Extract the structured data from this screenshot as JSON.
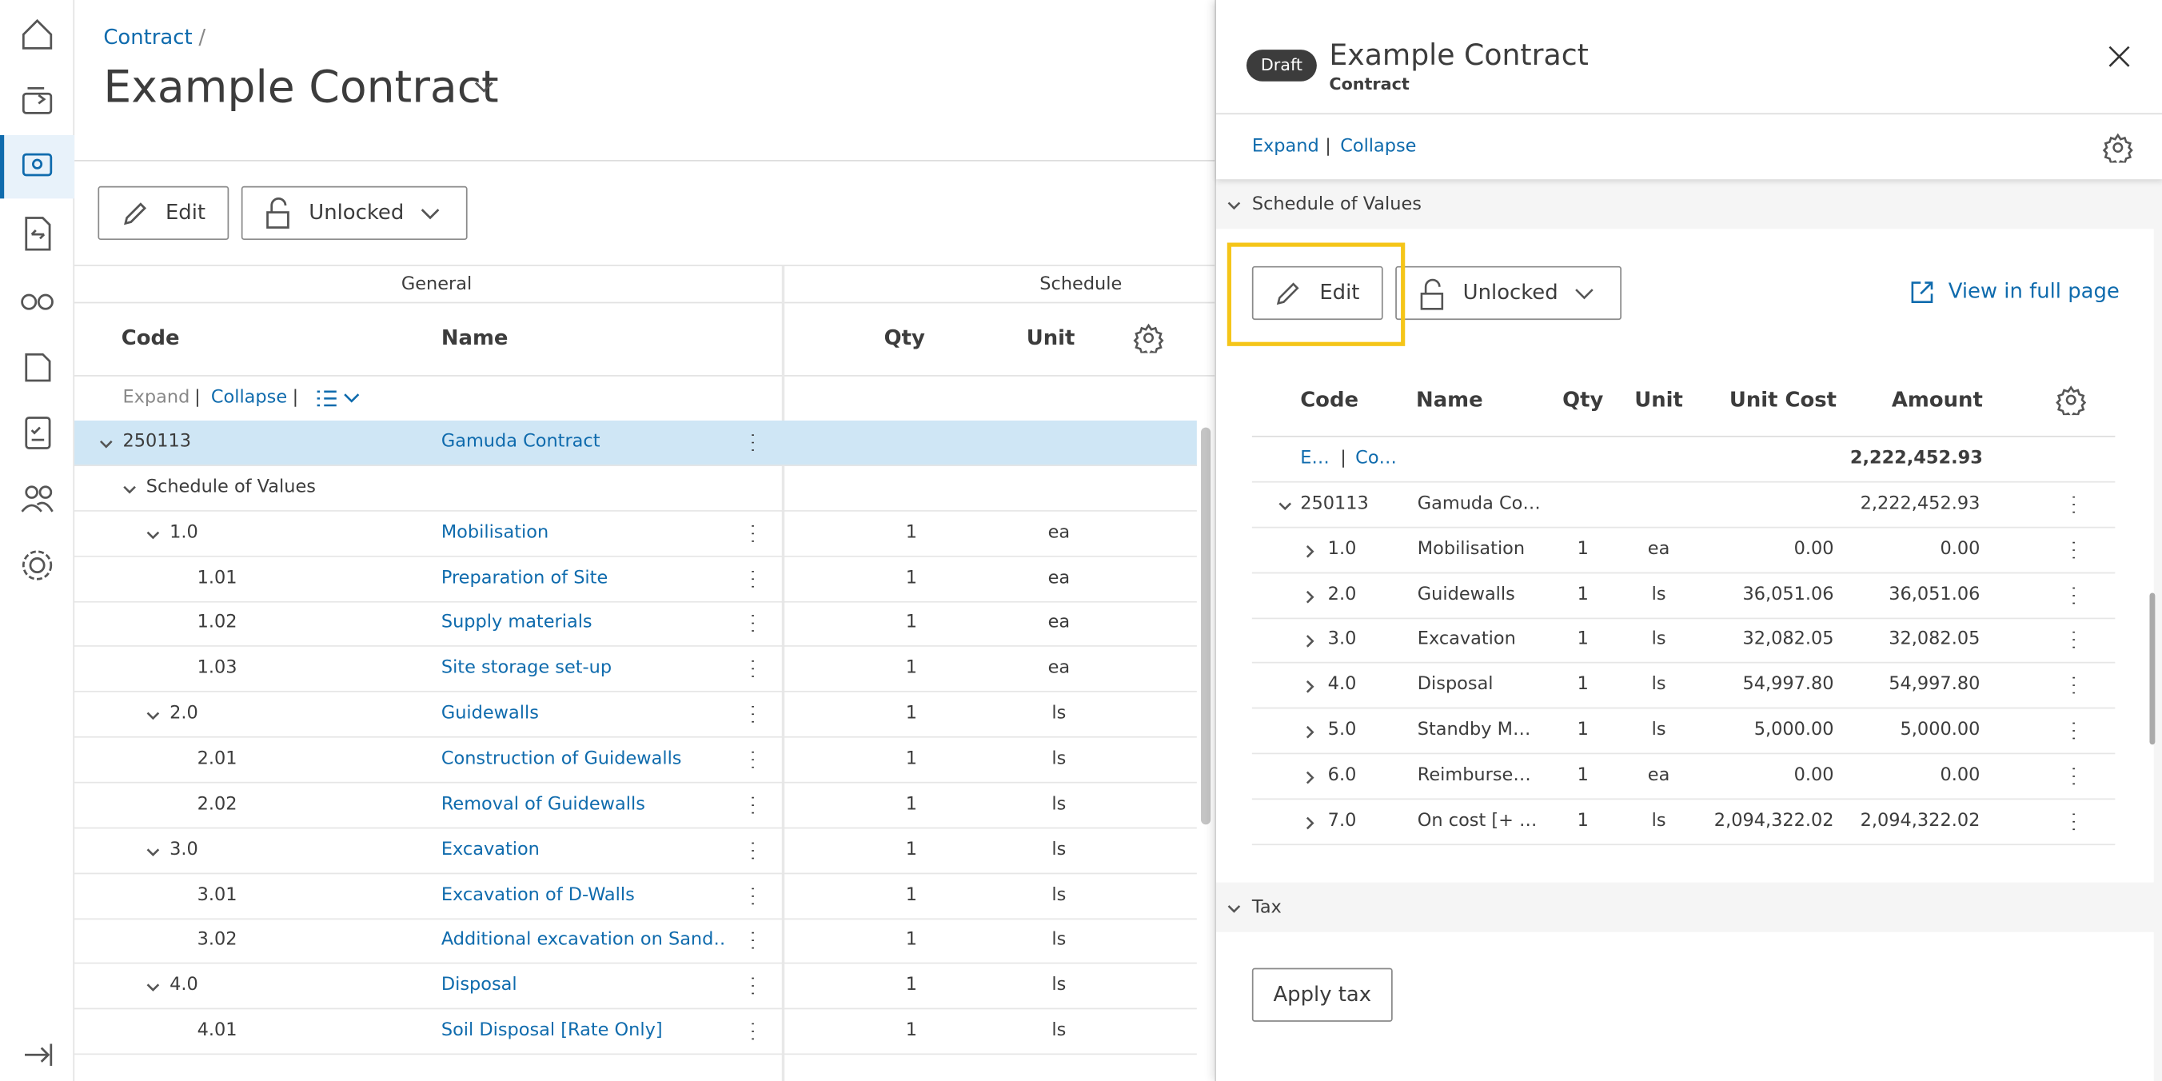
{
  "breadcrumb": {
    "link": "Contract",
    "separator": "/"
  },
  "header": {
    "title": "Example Contract"
  },
  "toolbar": {
    "edit": "Edit",
    "lock": "Unlocked"
  },
  "left_table": {
    "groups": [
      "General",
      "Schedule"
    ],
    "columns": [
      "Code",
      "Name",
      "Qty",
      "Unit"
    ],
    "expand": "Expand",
    "separator": "|",
    "collapse": "Collapse",
    "rows": [
      {
        "code": "250113",
        "name": "Gamuda Contract"
      },
      {
        "code": "Schedule of Values"
      },
      {
        "code": "1.0",
        "name": "Mobilisation",
        "qty": "1",
        "unit": "ea"
      },
      {
        "code": "1.01",
        "name": "Preparation of Site",
        "qty": "1",
        "unit": "ea"
      },
      {
        "code": "1.02",
        "name": "Supply materials",
        "qty": "1",
        "unit": "ea"
      },
      {
        "code": "1.03",
        "name": "Site storage set-up",
        "qty": "1",
        "unit": "ea"
      },
      {
        "code": "2.0",
        "name": "Guidewalls",
        "qty": "1",
        "unit": "ls"
      },
      {
        "code": "2.01",
        "name": "Construction of Guidewalls",
        "qty": "1",
        "unit": "ls"
      },
      {
        "code": "2.02",
        "name": "Removal of Guidewalls",
        "qty": "1",
        "unit": "ls"
      },
      {
        "code": "3.0",
        "name": "Excavation",
        "qty": "1",
        "unit": "ls"
      },
      {
        "code": "3.01",
        "name": "Excavation of D-Walls",
        "qty": "1",
        "unit": "ls"
      },
      {
        "code": "3.02",
        "name": "Additional excavation on Sand…",
        "qty": "1",
        "unit": "ls"
      },
      {
        "code": "4.0",
        "name": "Disposal",
        "qty": "1",
        "unit": "ls"
      },
      {
        "code": "4.01",
        "name": "Soil Disposal [Rate Only]",
        "qty": "1",
        "unit": "ls"
      }
    ]
  },
  "panel": {
    "badge": "Draft",
    "title": "Example Contract",
    "subtitle": "Contract",
    "expand": "Expand",
    "separator": "|",
    "collapse": "Collapse",
    "section": "Schedule of Values",
    "edit": "Edit",
    "lock": "Unlocked",
    "full_page": "View in full page",
    "columns": [
      "Code",
      "Name",
      "Qty",
      "Unit",
      "Unit Cost",
      "Amount"
    ],
    "total": {
      "expand": "E…",
      "separator": "|",
      "collapse": "Co…",
      "amount": "2,222,452.93"
    },
    "rows": [
      {
        "code": "250113",
        "name": "Gamuda Co…",
        "amount": "2,222,452.93"
      },
      {
        "code": "1.0",
        "name": "Mobilisation",
        "qty": "1",
        "unit": "ea",
        "unit_cost": "0.00",
        "amount": "0.00"
      },
      {
        "code": "2.0",
        "name": "Guidewalls",
        "qty": "1",
        "unit": "ls",
        "unit_cost": "36,051.06",
        "amount": "36,051.06"
      },
      {
        "code": "3.0",
        "name": "Excavation",
        "qty": "1",
        "unit": "ls",
        "unit_cost": "32,082.05",
        "amount": "32,082.05"
      },
      {
        "code": "4.0",
        "name": "Disposal",
        "qty": "1",
        "unit": "ls",
        "unit_cost": "54,997.80",
        "amount": "54,997.80"
      },
      {
        "code": "5.0",
        "name": "Standby M…",
        "qty": "1",
        "unit": "ls",
        "unit_cost": "5,000.00",
        "amount": "5,000.00"
      },
      {
        "code": "6.0",
        "name": "Reimburse…",
        "qty": "1",
        "unit": "ea",
        "unit_cost": "0.00",
        "amount": "0.00"
      },
      {
        "code": "7.0",
        "name": "On cost [+ …",
        "qty": "1",
        "unit": "ls",
        "unit_cost": "2,094,322.02",
        "amount": "2,094,322.02"
      }
    ],
    "tax": "Tax",
    "apply_tax": "Apply tax"
  }
}
